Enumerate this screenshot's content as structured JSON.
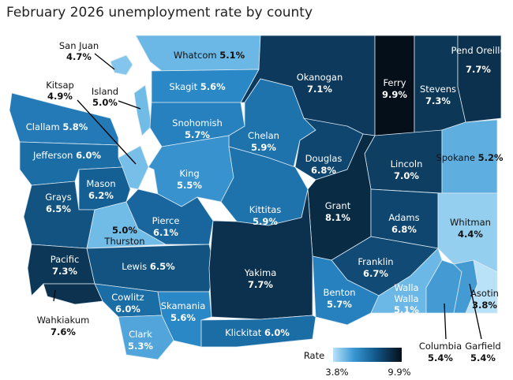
{
  "title": "February 2026 unemployment rate by county",
  "legend": {
    "title": "Rate",
    "min_label": "3.8%",
    "max_label": "9.9%",
    "min": 3.8,
    "max": 9.9,
    "colors": [
      "#b9e2f8",
      "#6bb8e6",
      "#2a88c7",
      "#145f94",
      "#0d3a5c",
      "#050f1a"
    ]
  },
  "counties": [
    {
      "name": "San Juan",
      "rate": "4.7%"
    },
    {
      "name": "Whatcom",
      "rate": "5.1%"
    },
    {
      "name": "Okanogan",
      "rate": "7.1%"
    },
    {
      "name": "Ferry",
      "rate": "9.9%"
    },
    {
      "name": "Stevens",
      "rate": "7.3%"
    },
    {
      "name": "Pend Oreille",
      "rate": "7.7%"
    },
    {
      "name": "Kitsap",
      "rate": "4.9%"
    },
    {
      "name": "Island",
      "rate": "5.0%"
    },
    {
      "name": "Skagit",
      "rate": "5.6%"
    },
    {
      "name": "Clallam",
      "rate": "5.8%"
    },
    {
      "name": "Snohomish",
      "rate": "5.7%"
    },
    {
      "name": "Chelan",
      "rate": "5.9%"
    },
    {
      "name": "Jefferson",
      "rate": "6.0%"
    },
    {
      "name": "Douglas",
      "rate": "6.8%"
    },
    {
      "name": "Lincoln",
      "rate": "7.0%"
    },
    {
      "name": "Spokane",
      "rate": "5.2%"
    },
    {
      "name": "King",
      "rate": "5.5%"
    },
    {
      "name": "Mason",
      "rate": "6.2%"
    },
    {
      "name": "Grays",
      "rate": "6.5%"
    },
    {
      "name": "Grant",
      "rate": "8.1%"
    },
    {
      "name": "Kittitas",
      "rate": "5.9%"
    },
    {
      "name": "Thurston",
      "rate": "5.0%"
    },
    {
      "name": "Pierce",
      "rate": "6.1%"
    },
    {
      "name": "Adams",
      "rate": "6.8%"
    },
    {
      "name": "Whitman",
      "rate": "4.4%"
    },
    {
      "name": "Pacific",
      "rate": "7.3%"
    },
    {
      "name": "Lewis",
      "rate": "6.5%"
    },
    {
      "name": "Yakima",
      "rate": "7.7%"
    },
    {
      "name": "Franklin",
      "rate": "6.7%"
    },
    {
      "name": "Benton",
      "rate": "5.7%"
    },
    {
      "name": "Walla Walla",
      "rate": "5.1%"
    },
    {
      "name": "Asotin",
      "rate": "3.8%"
    },
    {
      "name": "Cowlitz",
      "rate": "6.0%"
    },
    {
      "name": "Skamania",
      "rate": "5.6%"
    },
    {
      "name": "Wahkiakum",
      "rate": "7.6%"
    },
    {
      "name": "Clark",
      "rate": "5.3%"
    },
    {
      "name": "Klickitat",
      "rate": "6.0%"
    },
    {
      "name": "Columbia",
      "rate": "5.4%"
    },
    {
      "name": "Garfield",
      "rate": "5.4%"
    }
  ]
}
